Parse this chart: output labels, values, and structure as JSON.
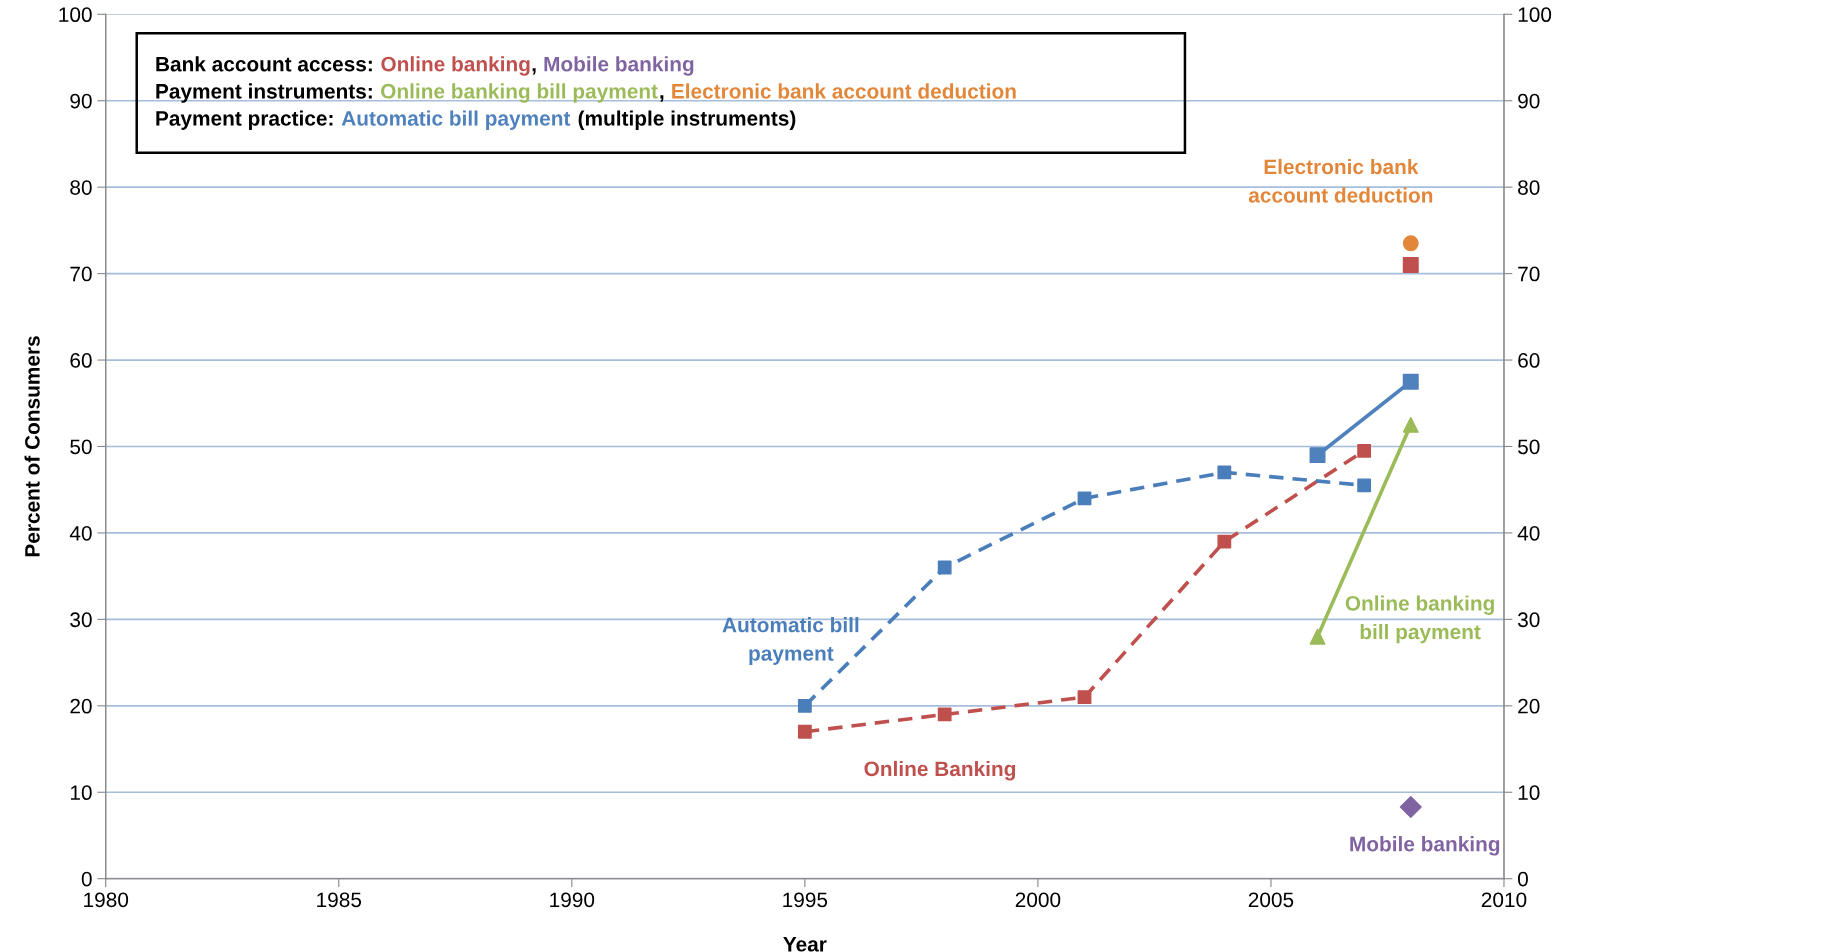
{
  "chart_data": {
    "type": "line",
    "xlabel": "Year",
    "ylabel": "Percent of Consumers",
    "xlim": [
      1980,
      2010
    ],
    "xticks": [
      1980,
      1985,
      1990,
      1995,
      2000,
      2005,
      2010
    ],
    "ylim": [
      0,
      100
    ],
    "yticks": [
      0,
      10,
      20,
      30,
      40,
      50,
      60,
      70,
      80,
      90,
      100
    ],
    "y2lim": [
      0,
      100
    ],
    "y2ticks": [
      0,
      10,
      20,
      30,
      40,
      50,
      60,
      70,
      80,
      90,
      100
    ],
    "grid": "y",
    "annotations": [
      "Bank account access:",
      "Online banking",
      ",",
      "Mobile banking",
      "Payment instruments:",
      "Online banking bill payment",
      ",",
      "Electronic bank account deduction",
      "Payment practice:",
      "Automatic bill payment",
      "(multiple instruments)"
    ],
    "series": [
      {
        "type": "scatter",
        "color": "#c0504d",
        "marker": "square",
        "x": [
          2008
        ],
        "values": [
          71
        ]
      },
      {
        "type": "scatter",
        "name": "Mobile banking",
        "color": "#8064a2",
        "marker": "diamond",
        "x": [
          2008
        ],
        "values": [
          8.3
        ]
      },
      {
        "name": "Online banking\nbill payment",
        "color": "#9bbb59",
        "marker": "triangle",
        "line_style": "solid",
        "x": [
          2006,
          2008
        ],
        "values": [
          28,
          52.5
        ]
      },
      {
        "type": "scatter",
        "name": "Electronic bank\naccount deduction",
        "color": "#e2873a",
        "marker": "circle",
        "x": [
          2008
        ],
        "values": [
          73.5
        ]
      },
      {
        "color": "#4f81bd",
        "marker": "square",
        "line_style": "solid",
        "x": [
          2006,
          2008
        ],
        "values": [
          49,
          57.5
        ]
      },
      {
        "name": "Online Banking",
        "color": "#c0504d",
        "marker": "square",
        "line_style": "dashed",
        "x": [
          1995,
          1998,
          2001,
          2004,
          2007
        ],
        "values": [
          17,
          19,
          21,
          39,
          49.5
        ]
      },
      {
        "name": "Automatic bill\npayment",
        "color": "#4a7ebb",
        "marker": "square",
        "line_style": "dashed",
        "x": [
          1995,
          1998,
          2001,
          2004,
          2007
        ],
        "values": [
          20,
          36,
          44,
          47,
          45.5
        ]
      }
    ]
  }
}
